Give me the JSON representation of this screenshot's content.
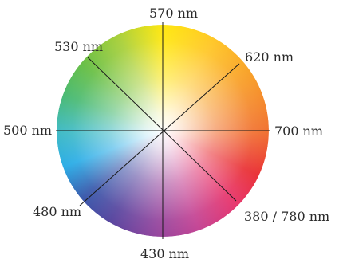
{
  "wheel": {
    "labels": {
      "nm_570": "570 nm",
      "nm_620": "620 nm",
      "nm_700": "700 nm",
      "nm_380_780": "380 / 780 nm",
      "nm_430": "430 nm",
      "nm_480": "480 nm",
      "nm_500": "500 nm",
      "nm_530": "530 nm"
    },
    "colors": {
      "yellow": "#ffe600",
      "orange": "#f7961c",
      "red": "#e8252a",
      "magenta": "#e62a64",
      "violet": "#8a3a98",
      "blue": "#2e4fa6",
      "cyan": "#1fa8e5",
      "green": "#3fb66a",
      "line": "#1a1a1a",
      "text": "#2a2a2a"
    }
  }
}
